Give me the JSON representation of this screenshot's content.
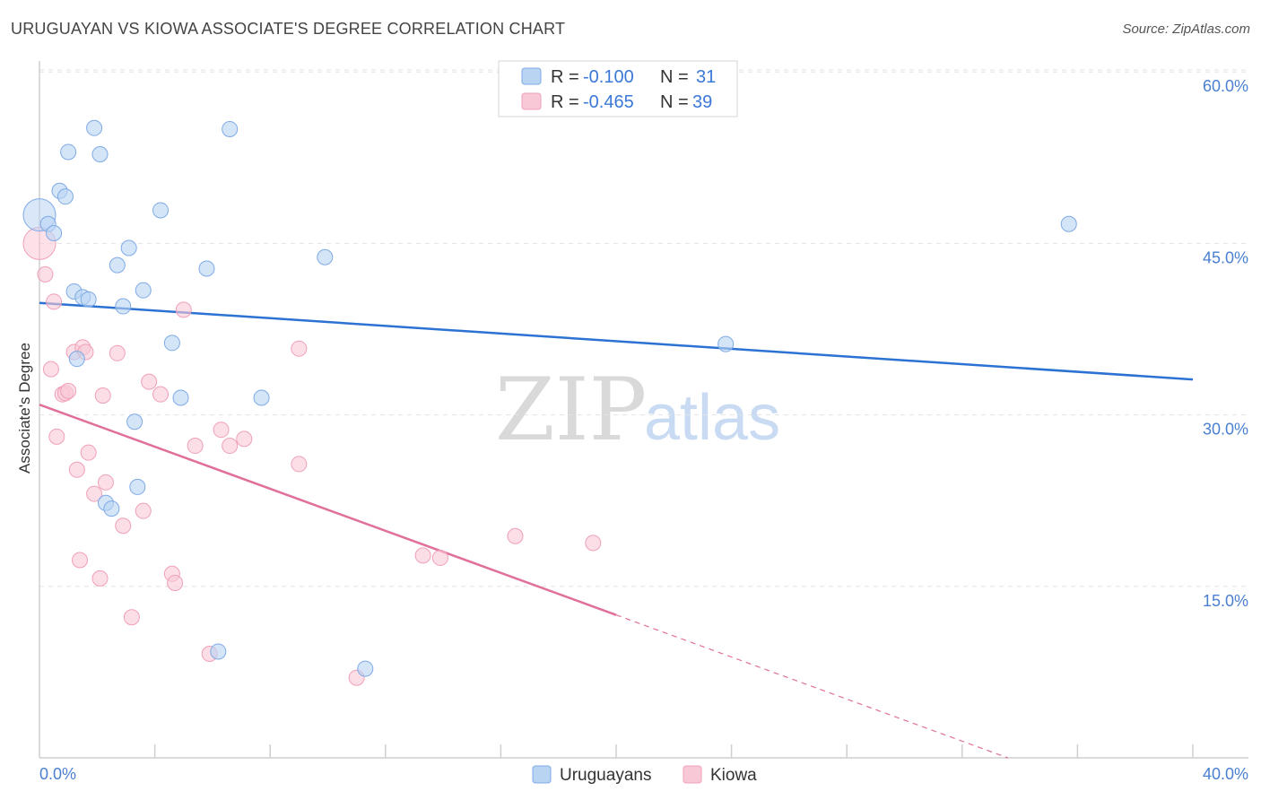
{
  "header": {
    "title": "URUGUAYAN VS KIOWA ASSOCIATE'S DEGREE CORRELATION CHART",
    "source": "Source: ZipAtlas.com"
  },
  "watermark": {
    "zip": "ZIP",
    "atlas": "atlas"
  },
  "legend": {
    "rows": [
      {
        "r_label": "R =",
        "r_value": "-0.100",
        "n_label": "N =",
        "n_value": "31",
        "color": "#a9c8f0"
      },
      {
        "r_label": "R =",
        "r_value": "-0.465",
        "n_label": "N =",
        "n_value": "39",
        "color": "#f7b8ca"
      }
    ]
  },
  "bottom_legend": {
    "uruguayans": "Uruguayans",
    "kiowa": "Kiowa"
  },
  "chart_data": {
    "type": "scatter",
    "title": "URUGUAYAN VS KIOWA ASSOCIATE'S DEGREE CORRELATION CHART",
    "xlabel": "",
    "ylabel": "Associate's Degree",
    "xlim": [
      0,
      40
    ],
    "ylim": [
      0,
      63
    ],
    "x_tick_labels": [
      "0.0%",
      "40.0%"
    ],
    "y_ticks": [
      15,
      30,
      45,
      60
    ],
    "y_tick_labels": [
      "15.0%",
      "30.0%",
      "45.0%",
      "60.0%"
    ],
    "grid": true,
    "legend_position": "top-center",
    "series": [
      {
        "name": "Uruguayans",
        "color": "#7eaae6",
        "fill": "#b9d3f3",
        "points": [
          [
            0.0,
            47.5,
            "big"
          ],
          [
            0.3,
            46.7
          ],
          [
            0.5,
            45.9
          ],
          [
            0.7,
            49.6
          ],
          [
            0.9,
            49.1
          ],
          [
            1.0,
            53.0
          ],
          [
            1.9,
            55.1
          ],
          [
            2.1,
            52.8
          ],
          [
            3.1,
            44.6
          ],
          [
            2.7,
            43.1
          ],
          [
            3.6,
            40.9
          ],
          [
            4.2,
            47.9
          ],
          [
            5.8,
            42.8
          ],
          [
            6.6,
            55.0
          ],
          [
            9.9,
            43.8
          ],
          [
            1.2,
            40.8
          ],
          [
            1.5,
            40.3
          ],
          [
            1.7,
            40.1
          ],
          [
            2.9,
            39.5
          ],
          [
            1.3,
            34.9
          ],
          [
            4.6,
            36.3
          ],
          [
            4.9,
            31.5
          ],
          [
            7.7,
            31.5
          ],
          [
            3.3,
            29.4
          ],
          [
            3.4,
            23.7
          ],
          [
            2.3,
            22.3
          ],
          [
            2.5,
            21.8
          ],
          [
            6.2,
            9.3
          ],
          [
            11.3,
            7.8
          ],
          [
            23.8,
            36.2
          ],
          [
            35.7,
            46.7
          ]
        ],
        "trend": {
          "x0": 0,
          "y0": 39.8,
          "x1": 40,
          "y1": 33.1
        }
      },
      {
        "name": "Kiowa",
        "color": "#f0a0b8",
        "fill": "#f9c8d6",
        "points": [
          [
            0.0,
            45.0,
            "big"
          ],
          [
            0.2,
            42.3
          ],
          [
            0.4,
            34.0
          ],
          [
            0.5,
            39.9
          ],
          [
            0.6,
            28.1
          ],
          [
            0.8,
            31.8
          ],
          [
            0.9,
            31.9
          ],
          [
            1.0,
            32.1
          ],
          [
            1.2,
            35.5
          ],
          [
            1.3,
            25.2
          ],
          [
            1.4,
            17.3
          ],
          [
            1.5,
            35.9
          ],
          [
            1.6,
            35.5
          ],
          [
            1.7,
            26.7
          ],
          [
            1.9,
            23.1
          ],
          [
            2.1,
            15.7
          ],
          [
            2.2,
            31.7
          ],
          [
            2.3,
            24.1
          ],
          [
            2.7,
            35.4
          ],
          [
            2.9,
            20.3
          ],
          [
            3.2,
            12.3
          ],
          [
            3.6,
            21.6
          ],
          [
            3.8,
            32.9
          ],
          [
            4.2,
            31.8
          ],
          [
            4.6,
            16.1
          ],
          [
            4.7,
            15.3
          ],
          [
            5.0,
            39.2
          ],
          [
            5.4,
            27.3
          ],
          [
            5.9,
            9.1
          ],
          [
            6.3,
            28.7
          ],
          [
            6.6,
            27.3
          ],
          [
            7.1,
            27.9
          ],
          [
            9.0,
            35.8
          ],
          [
            9.0,
            25.7
          ],
          [
            11.0,
            7.0
          ],
          [
            13.3,
            17.7
          ],
          [
            13.9,
            17.5
          ],
          [
            16.5,
            19.4
          ],
          [
            19.2,
            18.8
          ]
        ],
        "trend": {
          "x0": 0,
          "y0": 30.9,
          "x1": 20.0,
          "y1": 12.5,
          "dash_to_x": 40,
          "dash_to_y": -5.9
        }
      }
    ]
  }
}
